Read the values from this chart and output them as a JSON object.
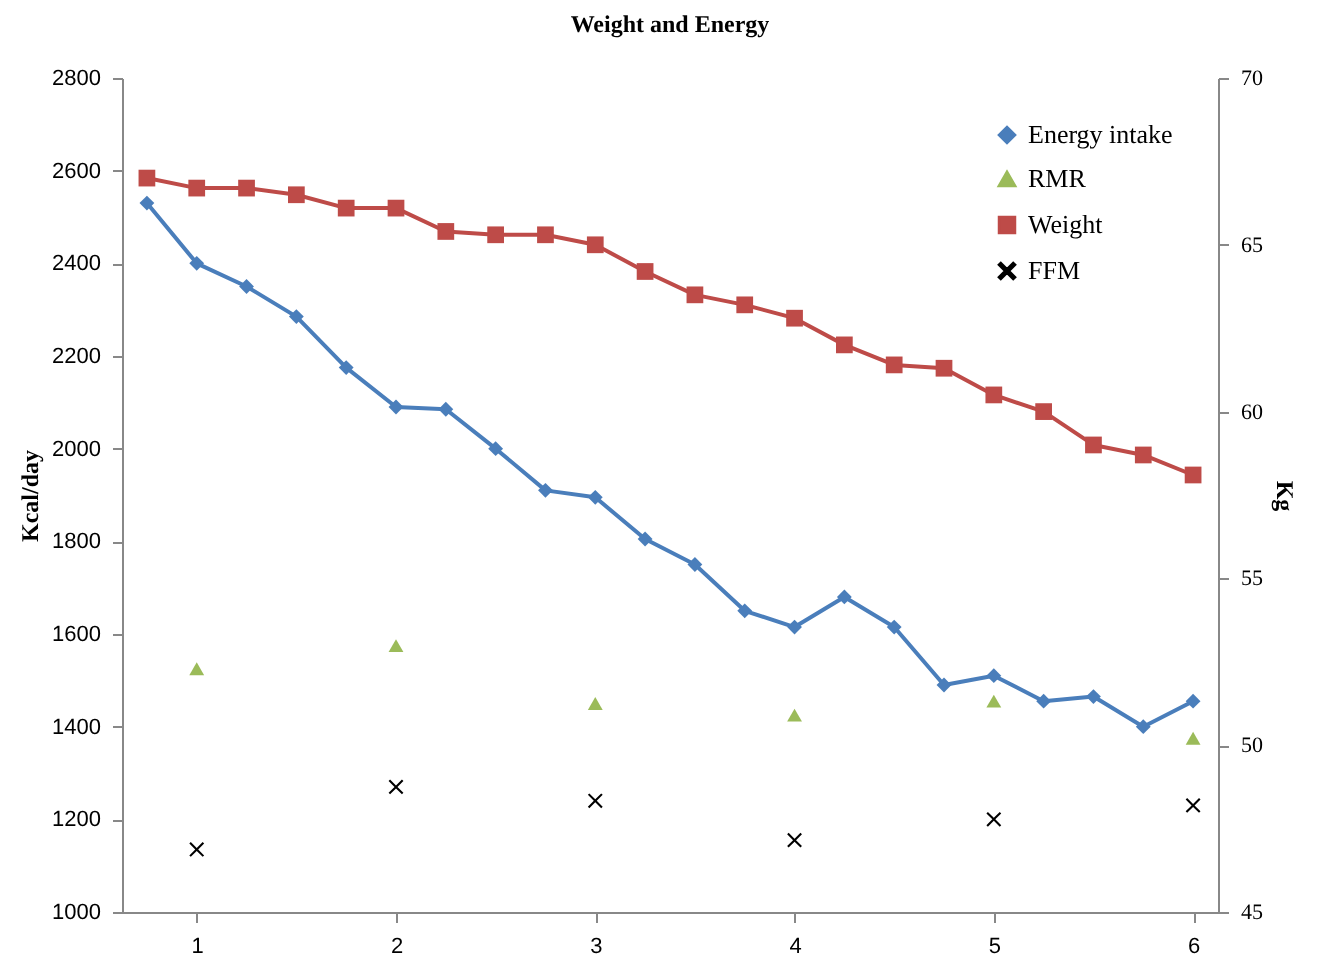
{
  "chart_data": {
    "type": "line",
    "title": "Weight and Energy",
    "ylabel": "Kcal/day",
    "y2label": "Kg",
    "x": [
      0.75,
      1,
      1.25,
      1.5,
      1.75,
      2,
      2.25,
      2.5,
      2.75,
      3,
      3.25,
      3.5,
      3.75,
      4,
      4.25,
      4.5,
      4.75,
      5,
      5.25,
      5.5,
      5.75,
      6
    ],
    "xlim": [
      0.625,
      6.125
    ],
    "xticks": [
      1,
      2,
      3,
      4,
      5,
      6
    ],
    "ylim": [
      1000,
      2800
    ],
    "yticks": [
      1000,
      1200,
      1400,
      1600,
      1800,
      2000,
      2200,
      2400,
      2600,
      2800
    ],
    "y2lim": [
      45,
      70
    ],
    "y2ticks": [
      45,
      50,
      55,
      60,
      65,
      70
    ],
    "grid": false,
    "legend": "top right",
    "series": [
      {
        "name": "Energy intake",
        "type": "line",
        "marker": "diamond",
        "color": "#4a7ebb",
        "values": [
          2530,
          2400,
          2350,
          2285,
          2175,
          2090,
          2085,
          2000,
          1910,
          1895,
          1805,
          1750,
          1650,
          1615,
          1680,
          1615,
          1490,
          1510,
          1455,
          1465,
          1400,
          1455
        ]
      },
      {
        "name": "RMR",
        "type": "scatter",
        "marker": "triangle",
        "color": "#9bbb59",
        "x": [
          1,
          2,
          3,
          4,
          5,
          6
        ],
        "values": [
          1525,
          1575,
          1450,
          1425,
          1455,
          1375
        ]
      },
      {
        "name": "Weight",
        "type": "line",
        "marker": "square",
        "axis": "y2",
        "color": "#be4b48",
        "values": [
          67.0,
          66.7,
          66.7,
          66.5,
          66.1,
          66.1,
          65.4,
          65.3,
          65.3,
          65.0,
          64.2,
          63.5,
          63.2,
          62.8,
          62.0,
          61.4,
          61.3,
          60.5,
          60.0,
          59.0,
          58.7,
          58.1
        ]
      },
      {
        "name": "FFM",
        "type": "scatter",
        "marker": "cross",
        "color": "#000000",
        "x": [
          1,
          2,
          3,
          4,
          5,
          6
        ],
        "values": [
          1135,
          1270,
          1240,
          1155,
          1200,
          1230
        ]
      }
    ]
  }
}
